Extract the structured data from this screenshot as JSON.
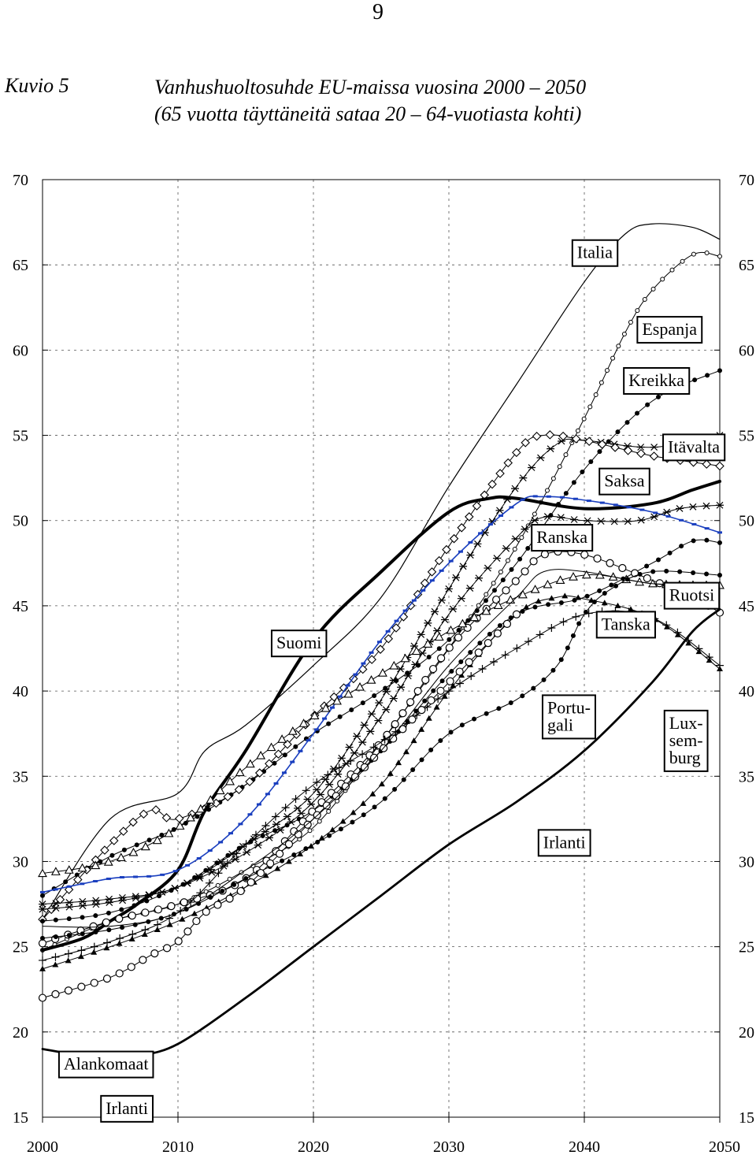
{
  "page_number": "9",
  "figure": {
    "label": "Kuvio 5",
    "title_line1": "Vanhushuoltosuhde EU-maissa vuosina 2000 – 2050",
    "title_line2": "(65 vuotta täyttäneitä sataa 20 – 64-vuotiasta kohti)"
  },
  "chart_data": {
    "type": "line",
    "title": "Vanhushuoltosuhde EU-maissa vuosina 2000 – 2050",
    "subtitle": "(65 vuotta täyttäneitä sataa 20 – 64-vuotiasta kohti)",
    "xlabel": "",
    "ylabel": "",
    "xlim": [
      2000,
      2050
    ],
    "ylim": [
      15,
      70
    ],
    "x_ticks": [
      2000,
      2010,
      2020,
      2030,
      2040,
      2050
    ],
    "y_ticks": [
      15,
      20,
      25,
      30,
      35,
      40,
      45,
      50,
      55,
      60,
      65,
      70
    ],
    "grid": "dashed vertical and horizontal",
    "series": [
      {
        "name": "Italia",
        "marker": "none",
        "stroke": "#000000",
        "width": 1.2,
        "points": [
          [
            2000,
            26.6
          ],
          [
            2005,
            32.5
          ],
          [
            2010,
            34.0
          ],
          [
            2012,
            36.5
          ],
          [
            2015,
            38.0
          ],
          [
            2020,
            41.5
          ],
          [
            2025,
            45.5
          ],
          [
            2030,
            52.0
          ],
          [
            2035,
            58.0
          ],
          [
            2040,
            64.0
          ],
          [
            2043,
            66.8
          ],
          [
            2045,
            67.4
          ],
          [
            2048,
            67.2
          ],
          [
            2050,
            66.5
          ]
        ]
      },
      {
        "name": "Espanja",
        "marker": "circle-small",
        "stroke": "#000000",
        "width": 1,
        "points": [
          [
            2000,
            24.8
          ],
          [
            2005,
            26.5
          ],
          [
            2010,
            27.5
          ],
          [
            2015,
            29.5
          ],
          [
            2020,
            32.0
          ],
          [
            2025,
            37.0
          ],
          [
            2030,
            42.5
          ],
          [
            2035,
            48.5
          ],
          [
            2040,
            56.0
          ],
          [
            2043,
            61.0
          ],
          [
            2045,
            63.5
          ],
          [
            2048,
            65.6
          ],
          [
            2050,
            65.5
          ]
        ]
      },
      {
        "name": "Kreikka",
        "marker": "dot",
        "stroke": "#000000",
        "width": 1,
        "points": [
          [
            2000,
            28.0
          ],
          [
            2005,
            30.3
          ],
          [
            2010,
            32.0
          ],
          [
            2015,
            34.5
          ],
          [
            2020,
            37.5
          ],
          [
            2025,
            40.0
          ],
          [
            2030,
            43.0
          ],
          [
            2035,
            47.5
          ],
          [
            2040,
            53.0
          ],
          [
            2045,
            57.0
          ],
          [
            2050,
            58.8
          ]
        ]
      },
      {
        "name": "Itävalta",
        "marker": "asterisk",
        "stroke": "#000000",
        "width": 1,
        "points": [
          [
            2000,
            27.5
          ],
          [
            2005,
            27.8
          ],
          [
            2010,
            28.5
          ],
          [
            2015,
            31.0
          ],
          [
            2020,
            34.0
          ],
          [
            2025,
            39.5
          ],
          [
            2030,
            46.0
          ],
          [
            2035,
            52.0
          ],
          [
            2038,
            54.5
          ],
          [
            2040,
            54.7
          ],
          [
            2045,
            54.3
          ],
          [
            2050,
            55.0
          ]
        ]
      },
      {
        "name": "Saksa",
        "marker": "diamond",
        "stroke": "#000000",
        "width": 1,
        "points": [
          [
            2000,
            26.6
          ],
          [
            2005,
            31.0
          ],
          [
            2008,
            33.0
          ],
          [
            2010,
            32.5
          ],
          [
            2015,
            34.5
          ],
          [
            2020,
            38.5
          ],
          [
            2025,
            42.5
          ],
          [
            2030,
            48.5
          ],
          [
            2035,
            54.0
          ],
          [
            2037,
            55.0
          ],
          [
            2040,
            54.7
          ],
          [
            2045,
            53.8
          ],
          [
            2050,
            53.2
          ]
        ]
      },
      {
        "name": "Suomi",
        "marker": "none",
        "stroke": "#000000",
        "width": 4,
        "points": [
          [
            2000,
            24.8
          ],
          [
            2003,
            25.5
          ],
          [
            2005,
            26.5
          ],
          [
            2007,
            27.5
          ],
          [
            2010,
            29.5
          ],
          [
            2012,
            33.0
          ],
          [
            2015,
            36.5
          ],
          [
            2020,
            43.0
          ],
          [
            2025,
            47.0
          ],
          [
            2030,
            50.5
          ],
          [
            2033,
            51.3
          ],
          [
            2035,
            51.3
          ],
          [
            2040,
            50.7
          ],
          [
            2045,
            51.0
          ],
          [
            2048,
            51.8
          ],
          [
            2050,
            52.3
          ]
        ]
      },
      {
        "name": "",
        "marker": "dash",
        "stroke": "#1a3fbf",
        "width": 1.6,
        "points": [
          [
            2000,
            28.2
          ],
          [
            2005,
            29.0
          ],
          [
            2010,
            29.5
          ],
          [
            2015,
            32.5
          ],
          [
            2020,
            37.5
          ],
          [
            2025,
            43.0
          ],
          [
            2030,
            47.5
          ],
          [
            2035,
            51.0
          ],
          [
            2037,
            51.4
          ],
          [
            2040,
            51.2
          ],
          [
            2045,
            50.5
          ],
          [
            2050,
            49.3
          ]
        ]
      },
      {
        "name": "Ranska",
        "marker": "asterisk",
        "stroke": "#000000",
        "width": 1,
        "points": [
          [
            2000,
            27.2
          ],
          [
            2005,
            27.6
          ],
          [
            2010,
            28.5
          ],
          [
            2015,
            30.5
          ],
          [
            2020,
            33.5
          ],
          [
            2025,
            38.5
          ],
          [
            2030,
            44.5
          ],
          [
            2035,
            49.0
          ],
          [
            2037,
            50.2
          ],
          [
            2040,
            50.0
          ],
          [
            2044,
            50.0
          ],
          [
            2047,
            50.7
          ],
          [
            2050,
            50.9
          ]
        ]
      },
      {
        "name": "Ruotsi",
        "marker": "dot",
        "stroke": "#000000",
        "width": 1,
        "points": [
          [
            2000,
            26.5
          ],
          [
            2005,
            27.0
          ],
          [
            2010,
            28.5
          ],
          [
            2015,
            31.0
          ],
          [
            2020,
            33.0
          ],
          [
            2025,
            36.5
          ],
          [
            2030,
            41.0
          ],
          [
            2035,
            44.5
          ],
          [
            2040,
            45.5
          ],
          [
            2045,
            47.5
          ],
          [
            2048,
            48.8
          ],
          [
            2050,
            48.7
          ]
        ]
      },
      {
        "name": "",
        "marker": "circle-open",
        "stroke": "#000000",
        "width": 1,
        "points": [
          [
            2000,
            25.2
          ],
          [
            2005,
            26.5
          ],
          [
            2010,
            27.5
          ],
          [
            2015,
            29.0
          ],
          [
            2020,
            33.0
          ],
          [
            2025,
            37.0
          ],
          [
            2030,
            42.5
          ],
          [
            2035,
            46.5
          ],
          [
            2037,
            48.0
          ],
          [
            2040,
            48.0
          ],
          [
            2045,
            46.5
          ],
          [
            2048,
            45.5
          ],
          [
            2050,
            44.6
          ]
        ]
      },
      {
        "name": "Tanska",
        "marker": "triangle-open",
        "stroke": "#000000",
        "width": 1,
        "points": [
          [
            2000,
            29.3
          ],
          [
            2005,
            30.0
          ],
          [
            2010,
            32.0
          ],
          [
            2015,
            35.5
          ],
          [
            2020,
            38.5
          ],
          [
            2025,
            41.0
          ],
          [
            2030,
            43.5
          ],
          [
            2035,
            45.5
          ],
          [
            2040,
            46.8
          ],
          [
            2045,
            46.3
          ],
          [
            2050,
            46.2
          ]
        ]
      },
      {
        "name": "Portugali",
        "marker": "triangle-filled",
        "stroke": "#000000",
        "width": 1,
        "points": [
          [
            2000,
            23.7
          ],
          [
            2005,
            25.0
          ],
          [
            2010,
            26.5
          ],
          [
            2015,
            28.5
          ],
          [
            2020,
            31.0
          ],
          [
            2025,
            34.5
          ],
          [
            2030,
            40.0
          ],
          [
            2035,
            44.5
          ],
          [
            2038,
            45.5
          ],
          [
            2040,
            45.4
          ],
          [
            2045,
            44.3
          ],
          [
            2050,
            41.3
          ]
        ]
      },
      {
        "name": "",
        "marker": "plus",
        "stroke": "#000000",
        "width": 1,
        "points": [
          [
            2000,
            24.2
          ],
          [
            2005,
            25.3
          ],
          [
            2010,
            27.0
          ],
          [
            2015,
            31.0
          ],
          [
            2020,
            34.5
          ],
          [
            2025,
            37.0
          ],
          [
            2030,
            40.0
          ],
          [
            2035,
            42.5
          ],
          [
            2040,
            44.5
          ],
          [
            2045,
            44.3
          ],
          [
            2050,
            41.5
          ]
        ]
      },
      {
        "name": "Luxemburg",
        "marker": "dot",
        "stroke": "#000000",
        "width": 1,
        "points": [
          [
            2000,
            25.5
          ],
          [
            2005,
            26.0
          ],
          [
            2010,
            27.0
          ],
          [
            2015,
            29.0
          ],
          [
            2020,
            31.0
          ],
          [
            2025,
            33.5
          ],
          [
            2030,
            37.5
          ],
          [
            2035,
            39.5
          ],
          [
            2038,
            41.5
          ],
          [
            2040,
            44.5
          ],
          [
            2042,
            46.0
          ],
          [
            2045,
            47.0
          ],
          [
            2050,
            46.8
          ]
        ]
      },
      {
        "name": "Alankomaat",
        "marker": "circle-open",
        "stroke": "#000000",
        "width": 1,
        "points": [
          [
            2000,
            22.0
          ],
          [
            2005,
            23.2
          ],
          [
            2008,
            24.5
          ],
          [
            2010,
            25.3
          ],
          [
            2012,
            27.0
          ],
          [
            2015,
            28.5
          ],
          [
            2020,
            32.5
          ],
          [
            2025,
            36.5
          ],
          [
            2030,
            40.5
          ],
          [
            2035,
            44.5
          ]
        ]
      },
      {
        "name": "Irlanti",
        "marker": "none",
        "stroke": "#000000",
        "width": 2.8,
        "points": [
          [
            2000,
            19.0
          ],
          [
            2003,
            18.6
          ],
          [
            2005,
            18.5
          ],
          [
            2007,
            18.6
          ],
          [
            2010,
            19.3
          ],
          [
            2015,
            22.0
          ],
          [
            2020,
            25.0
          ],
          [
            2025,
            28.0
          ],
          [
            2030,
            31.0
          ],
          [
            2035,
            33.5
          ],
          [
            2040,
            36.5
          ],
          [
            2045,
            40.5
          ],
          [
            2048,
            43.5
          ],
          [
            2050,
            44.8
          ]
        ]
      },
      {
        "name": "",
        "marker": "none",
        "stroke": "#000000",
        "width": 1,
        "points": [
          [
            2000,
            26.2
          ],
          [
            2005,
            26.2
          ],
          [
            2010,
            27.0
          ],
          [
            2015,
            29.5
          ],
          [
            2020,
            32.5
          ],
          [
            2025,
            36.5
          ],
          [
            2030,
            41.5
          ],
          [
            2035,
            45.5
          ],
          [
            2037,
            47.0
          ],
          [
            2040,
            47.0
          ],
          [
            2045,
            46.3
          ],
          [
            2050,
            46.1
          ]
        ]
      }
    ],
    "labels": [
      {
        "text": "Italia",
        "x": 2039.0,
        "y": 66.5
      },
      {
        "text": "Espanja",
        "x": 2043.8,
        "y": 62.0
      },
      {
        "text": "Kreikka",
        "x": 2042.8,
        "y": 59.0
      },
      {
        "text": "Itävalta",
        "x": 2045.7,
        "y": 55.1
      },
      {
        "text": "Saksa",
        "x": 2041.0,
        "y": 53.1
      },
      {
        "text": "Ranska",
        "x": 2036.0,
        "y": 49.8
      },
      {
        "text": "Ruotsi",
        "x": 2045.8,
        "y": 46.4
      },
      {
        "text": "Tanska",
        "x": 2040.8,
        "y": 44.7
      },
      {
        "text": "Suomi",
        "x": 2016.8,
        "y": 43.6
      },
      {
        "text": "Portu-\ngali",
        "x": 2036.8,
        "y": 39.8
      },
      {
        "text": "Lux-\nsem-\nburg",
        "x": 2045.8,
        "y": 38.9
      },
      {
        "text": "Irlanti",
        "x": 2036.5,
        "y": 31.9
      },
      {
        "text": "Alankomaat",
        "x": 2001.1,
        "y": 18.9
      },
      {
        "text": "Irlanti",
        "x": 2004.2,
        "y": 16.3
      }
    ]
  }
}
